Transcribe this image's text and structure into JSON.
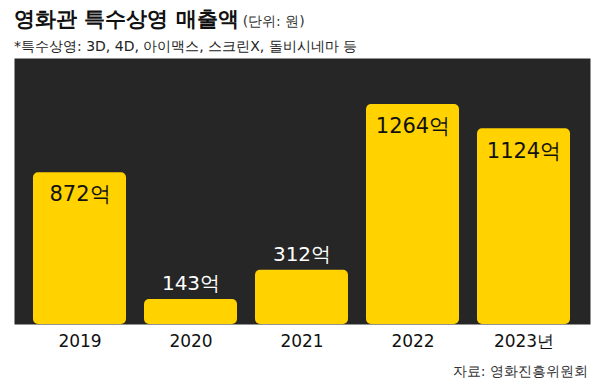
{
  "chart_data": {
    "type": "bar",
    "title": "영화관 특수상영 매출액",
    "subtitle": "(단위: 원)",
    "annotations": [
      "*특수상영: 3D, 4D, 아이맥스, 스크린X, 돌비시네마 등"
    ],
    "source": "자료: 영화진흥위원회",
    "categories": [
      "2019",
      "2020",
      "2021",
      "2022",
      "2023년"
    ],
    "values": [
      872,
      143,
      312,
      1264,
      1124
    ],
    "value_labels": [
      "872억",
      "143억",
      "312억",
      "1264억",
      "1124억"
    ],
    "color": "#ffd200",
    "ylim": [
      0,
      1264
    ],
    "data_labels": true,
    "tick_labels": "x",
    "grid": false
  }
}
